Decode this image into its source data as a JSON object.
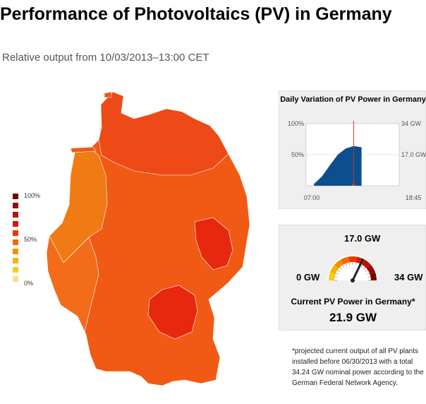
{
  "title": "Performance of Photovoltaics (PV) in Germany",
  "subtitle": "Relative output from 10/03/2013–13:00 CET",
  "legend": {
    "labels": [
      "100%",
      "50%",
      "0%"
    ],
    "colors": [
      "#7a0000",
      "#9a0a00",
      "#b81200",
      "#d41a00",
      "#e83a00",
      "#f06a00",
      "#f29000",
      "#f4b400",
      "#f6cc20",
      "#f8df8a"
    ]
  },
  "map_colors": {
    "main": "#f05a14",
    "north": "#ee4a18",
    "west": "#f07a14",
    "southwest": "#f26c1a",
    "hot": "#e8280e"
  },
  "chart_data": [
    {
      "type": "area",
      "title": "Daily Variation of PV Power in Germany",
      "x_range": [
        "07:00",
        "18:45"
      ],
      "y_left_ticks": [
        "100%",
        "50%"
      ],
      "y_right_ticks": [
        "34 GW",
        "17.0 GW"
      ],
      "current_time": "13:00",
      "series": [
        {
          "color": "#0b4f8f",
          "x": [
            "08:00",
            "09:00",
            "10:00",
            "11:00",
            "12:00",
            "13:00",
            "14:00"
          ],
          "values": [
            3,
            15,
            33,
            50,
            60,
            64,
            62
          ]
        }
      ]
    },
    {
      "type": "gauge",
      "min_label": "0 GW",
      "mid_label": "17.0 GW",
      "max_label": "34 GW",
      "value": 21.9,
      "max": 34,
      "arc_colors": [
        "#f6cc20",
        "#f4b400",
        "#f29000",
        "#f06a00",
        "#e83a00",
        "#d41a00",
        "#b81200",
        "#9a0a00",
        "#7a0000"
      ],
      "label": "Current PV Power in Germany*",
      "value_text": "21.9 GW"
    }
  ],
  "footnote": "*projected current output of all PV plants installed before 06/30/2013 with a total 34.24 GW nominal power according to the German Federal Network Agency."
}
